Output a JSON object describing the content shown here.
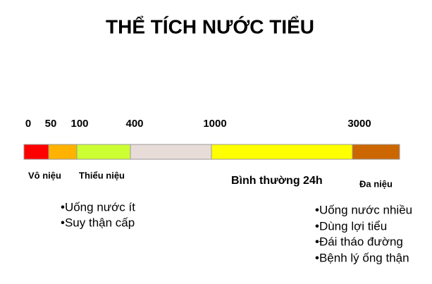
{
  "title": "THỂ TÍCH NƯỚC TIỂU",
  "scale": {
    "ticks": [
      0,
      50,
      100,
      400,
      1000,
      3000
    ],
    "segments": [
      {
        "color": "#ff0000"
      },
      {
        "color": "#ffb300"
      },
      {
        "color": "#ccff33"
      },
      {
        "color": "#e8dcd8"
      },
      {
        "color": "#ffff00"
      },
      {
        "color": "#cc6600"
      }
    ]
  },
  "zones": [
    "Vô niệu",
    "Thiểu niệu",
    "Bình thường 24h",
    "Đa niệu"
  ],
  "causes_low": [
    "•Uống nước ít",
    "•Suy thận cấp"
  ],
  "causes_high": [
    "•Uống nước nhiều",
    "•Dùng lợi tiểu",
    "•Đái tháo đường",
    "•Bệnh lý ống thận"
  ]
}
